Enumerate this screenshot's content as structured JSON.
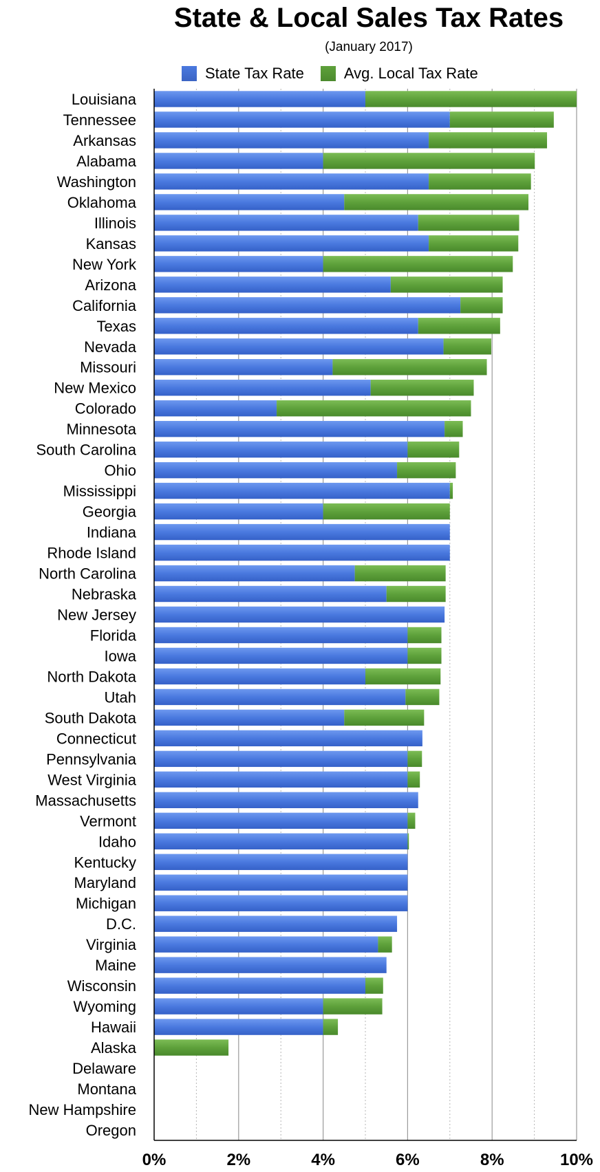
{
  "colors": {
    "state": "#4a79df",
    "local": "#5ea13b",
    "grid": "#9a9a9a",
    "axis": "#000000"
  },
  "chart_data": {
    "type": "bar",
    "orientation": "horizontal",
    "stacked": true,
    "title": "State & Local Sales Tax Rates",
    "subtitle": "(January 2017)",
    "xlim": [
      0,
      10
    ],
    "ticks": [
      0,
      2,
      4,
      6,
      8,
      10
    ],
    "tick_labels": [
      "0%",
      "2%",
      "4%",
      "6%",
      "8%",
      "10%"
    ],
    "legend": [
      "State Tax Rate",
      "Avg. Local Tax Rate"
    ],
    "legend_position": "top",
    "grid": true,
    "categories": [
      "Louisiana",
      "Tennessee",
      "Arkansas",
      "Alabama",
      "Washington",
      "Oklahoma",
      "Illinois",
      "Kansas",
      "New York",
      "Arizona",
      "California",
      "Texas",
      "Nevada",
      "Missouri",
      "New Mexico",
      "Colorado",
      "Minnesota",
      "South Carolina",
      "Ohio",
      "Mississippi",
      "Georgia",
      "Indiana",
      "Rhode Island",
      "North Carolina",
      "Nebraska",
      "New Jersey",
      "Florida",
      "Iowa",
      "North Dakota",
      "Utah",
      "South Dakota",
      "Connecticut",
      "Pennsylvania",
      "West Virginia",
      "Massachusetts",
      "Vermont",
      "Idaho",
      "Kentucky",
      "Maryland",
      "Michigan",
      "D.C.",
      "Virginia",
      "Maine",
      "Wisconsin",
      "Wyoming",
      "Hawaii",
      "Alaska",
      "Delaware",
      "Montana",
      "New Hampshire",
      "Oregon"
    ],
    "series": [
      {
        "name": "State Tax Rate",
        "values": [
          5.0,
          7.0,
          6.5,
          4.0,
          6.5,
          4.5,
          6.25,
          6.5,
          4.0,
          5.6,
          7.25,
          6.25,
          6.85,
          4.225,
          5.125,
          2.9,
          6.875,
          6.0,
          5.75,
          7.0,
          4.0,
          7.0,
          7.0,
          4.75,
          5.5,
          6.875,
          6.0,
          6.0,
          5.0,
          5.95,
          4.5,
          6.35,
          6.0,
          6.0,
          6.25,
          6.0,
          6.0,
          6.0,
          6.0,
          6.0,
          5.75,
          5.3,
          5.5,
          5.0,
          4.0,
          4.0,
          0,
          0,
          0,
          0,
          0
        ]
      },
      {
        "name": "Avg. Local Tax Rate",
        "values": [
          5.0,
          2.46,
          2.8,
          5.01,
          2.42,
          4.36,
          2.39,
          2.12,
          4.49,
          2.65,
          1.0,
          1.94,
          1.13,
          3.65,
          2.44,
          4.6,
          0.43,
          1.22,
          1.39,
          0.07,
          3.0,
          0,
          0,
          2.15,
          1.4,
          0,
          0.8,
          0.8,
          1.78,
          0.8,
          1.89,
          0,
          0.34,
          0.29,
          0,
          0.18,
          0.03,
          0,
          0,
          0,
          0,
          0.33,
          0,
          0.42,
          1.4,
          0.35,
          1.76,
          0,
          0,
          0,
          0
        ]
      }
    ]
  }
}
